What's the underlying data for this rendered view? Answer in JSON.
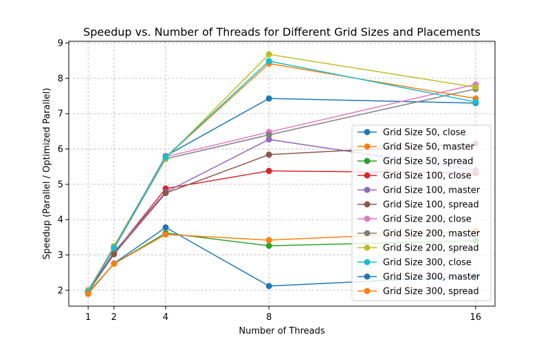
{
  "chart_data": {
    "type": "line",
    "title": "Speedup vs. Number of Threads for Different Grid Sizes and Placements",
    "xlabel": "Number of Threads",
    "ylabel": "Speedup (Parallel / Optimized Parallel)",
    "x": [
      1,
      2,
      4,
      8,
      16
    ],
    "xticks": [
      1,
      2,
      4,
      8,
      16
    ],
    "xlim": [
      0.25,
      16.75
    ],
    "yticks": [
      2,
      3,
      4,
      5,
      6,
      7,
      8,
      9
    ],
    "ylim": [
      1.55,
      9.05
    ],
    "grid": true,
    "grid_style": "dashed",
    "legend_position": "lower-right",
    "marker": "circle",
    "series": [
      {
        "name": "Grid Size 50, close",
        "color": "#1f77b4",
        "values": [
          1.95,
          3.2,
          5.8,
          7.43,
          7.3
        ]
      },
      {
        "name": "Grid Size 50, master",
        "color": "#ff7f0e",
        "values": [
          1.93,
          3.25,
          5.76,
          8.42,
          7.43
        ]
      },
      {
        "name": "Grid Size 50, spread",
        "color": "#2ca02c",
        "values": [
          1.93,
          2.75,
          3.62,
          3.26,
          3.4
        ]
      },
      {
        "name": "Grid Size 100, close",
        "color": "#d62728",
        "values": [
          1.95,
          3.05,
          4.88,
          5.38,
          5.32
        ]
      },
      {
        "name": "Grid Size 100, master",
        "color": "#9467bd",
        "values": [
          1.97,
          3.08,
          4.78,
          6.27,
          5.4
        ]
      },
      {
        "name": "Grid Size 100, spread",
        "color": "#8c564b",
        "values": [
          1.96,
          3.02,
          4.75,
          5.84,
          6.15
        ]
      },
      {
        "name": "Grid Size 200, close",
        "color": "#e377c2",
        "values": [
          2.0,
          3.22,
          5.78,
          6.48,
          7.83
        ]
      },
      {
        "name": "Grid Size 200, master",
        "color": "#7f7f7f",
        "values": [
          1.99,
          3.18,
          5.72,
          6.4,
          7.7
        ]
      },
      {
        "name": "Grid Size 200, spread",
        "color": "#bcbd22",
        "values": [
          1.98,
          3.24,
          5.73,
          8.68,
          7.75
        ]
      },
      {
        "name": "Grid Size 300, close",
        "color": "#17becf",
        "values": [
          1.96,
          3.21,
          5.77,
          8.49,
          7.33
        ]
      },
      {
        "name": "Grid Size 300, master",
        "color": "#1f77b4",
        "values": [
          1.9,
          2.76,
          3.78,
          2.12,
          2.4
        ]
      },
      {
        "name": "Grid Size 300, spread",
        "color": "#ff7f0e",
        "values": [
          1.9,
          2.75,
          3.58,
          3.42,
          3.68
        ]
      }
    ]
  }
}
